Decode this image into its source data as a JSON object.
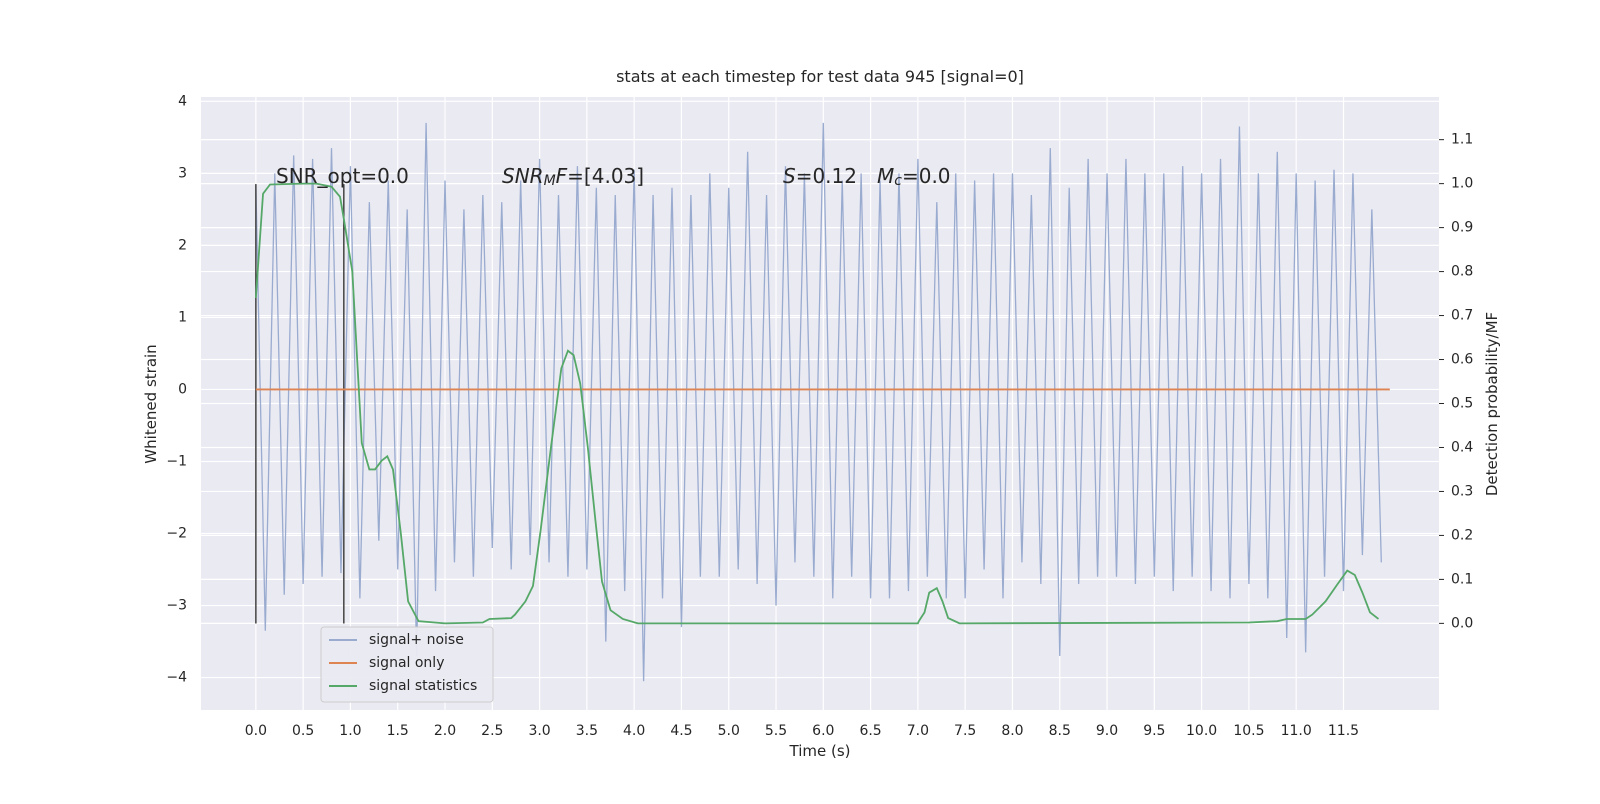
{
  "chart_data": {
    "type": "line",
    "title": "stats at each timestep for test data 945 [signal=0]",
    "x_label": "Time (s)",
    "y_label": "Whitened strain",
    "y2_label": "Detection probability/MF",
    "xlim": [
      -0.58,
      12.51
    ],
    "ylim": [
      -4.45,
      4.06
    ],
    "y2lim": [
      -0.197,
      1.197
    ],
    "xticks": [
      {
        "value": 0,
        "label": "0.0"
      },
      0.5,
      {
        "value": 1,
        "label": "1.0"
      },
      1.5,
      {
        "value": 2,
        "label": "2.0"
      },
      2.5,
      {
        "value": 3,
        "label": "3.0"
      },
      3.5,
      {
        "value": 4,
        "label": "4.0"
      },
      4.5,
      {
        "value": 5,
        "label": "5.0"
      },
      5.5,
      {
        "value": 6,
        "label": "6.0"
      },
      6.5,
      {
        "value": 7,
        "label": "7.0"
      },
      7.5,
      {
        "value": 8,
        "label": "8.0"
      },
      8.5,
      {
        "value": 9,
        "label": "9.0"
      },
      9.5,
      {
        "value": 10,
        "label": "10.0"
      },
      10.5,
      {
        "value": 11,
        "label": "11.0"
      },
      11.5
    ],
    "yticks": [
      {
        "value": -4,
        "label": "−4"
      },
      {
        "value": -3,
        "label": "−3"
      },
      {
        "value": -2,
        "label": "−2"
      },
      {
        "value": -1,
        "label": "−1"
      },
      0,
      1,
      2,
      3,
      4
    ],
    "y2ticks": [
      {
        "value": 0,
        "label": "0.0"
      },
      0.1,
      0.2,
      0.3,
      0.4,
      0.5,
      0.6,
      0.7,
      0.8,
      0.9,
      {
        "value": 1,
        "label": "1.0"
      },
      1.1
    ],
    "grid": true,
    "legend": "lower left",
    "series": [
      {
        "name": "signal+ noise",
        "color": "#9aabd0",
        "x": [
          0.0,
          0.1,
          0.2,
          0.3,
          0.4,
          0.5,
          0.6,
          0.7,
          0.8,
          0.9,
          1.0,
          1.1,
          1.2,
          1.3,
          1.4,
          1.5,
          1.6,
          1.7,
          1.8,
          1.9,
          2.0,
          2.1,
          2.2,
          2.3,
          2.4,
          2.5,
          2.6,
          2.7,
          2.8,
          2.9,
          3.0,
          3.1,
          3.2,
          3.3,
          3.4,
          3.5,
          3.6,
          3.7,
          3.8,
          3.9,
          4.0,
          4.1,
          4.2,
          4.3,
          4.4,
          4.5,
          4.6,
          4.7,
          4.8,
          4.9,
          5.0,
          5.1,
          5.2,
          5.3,
          5.4,
          5.5,
          5.6,
          5.7,
          5.8,
          5.9,
          6.0,
          6.1,
          6.2,
          6.3,
          6.4,
          6.5,
          6.6,
          6.7,
          6.8,
          6.9,
          7.0,
          7.1,
          7.2,
          7.3,
          7.4,
          7.5,
          7.6,
          7.7,
          7.8,
          7.9,
          8.0,
          8.1,
          8.2,
          8.3,
          8.4,
          8.5,
          8.6,
          8.7,
          8.8,
          8.9,
          9.0,
          9.1,
          9.2,
          9.3,
          9.4,
          9.5,
          9.6,
          9.7,
          9.8,
          9.9,
          10.0,
          10.1,
          10.2,
          10.3,
          10.4,
          10.5,
          10.6,
          10.7,
          10.8,
          10.9,
          11.0,
          11.1,
          11.2,
          11.3,
          11.4,
          11.5,
          11.6,
          11.7,
          11.8,
          11.9
        ],
        "values": [
          2.85,
          -3.35,
          3.0,
          -2.85,
          3.25,
          -2.7,
          3.2,
          -2.6,
          3.35,
          -2.55,
          3.1,
          -2.9,
          2.6,
          -2.1,
          2.9,
          -2.5,
          2.5,
          -3.7,
          3.7,
          -2.8,
          2.9,
          -2.4,
          2.5,
          -2.6,
          2.7,
          -2.2,
          2.6,
          -2.5,
          2.9,
          -2.3,
          3.2,
          -2.4,
          2.7,
          -2.6,
          3.1,
          -2.5,
          2.8,
          -3.5,
          2.7,
          -2.8,
          3.05,
          -4.05,
          2.7,
          -2.9,
          2.8,
          -3.3,
          2.7,
          -2.6,
          3.0,
          -2.6,
          2.8,
          -2.5,
          3.3,
          -2.7,
          2.7,
          -3.0,
          3.1,
          -2.4,
          3.0,
          -2.6,
          3.7,
          -2.9,
          2.9,
          -2.6,
          3.0,
          -2.9,
          2.9,
          -2.9,
          3.0,
          -2.8,
          3.2,
          -2.6,
          2.6,
          -2.9,
          3.0,
          -2.9,
          2.9,
          -2.5,
          3.0,
          -2.9,
          3.0,
          -2.4,
          2.7,
          -2.7,
          3.35,
          -3.7,
          2.8,
          -2.7,
          3.2,
          -2.6,
          3.0,
          -2.6,
          3.2,
          -2.7,
          3.0,
          -2.6,
          3.0,
          -2.8,
          3.1,
          -2.6,
          3.0,
          -2.8,
          3.2,
          -2.9,
          3.65,
          -2.7,
          3.0,
          -2.9,
          3.3,
          -3.45,
          3.0,
          -3.65,
          2.9,
          -2.6,
          3.05,
          -2.8,
          3.0,
          -2.3,
          2.5,
          -2.4
        ]
      },
      {
        "name": "signal only",
        "color": "#dd8452",
        "x": [
          0,
          11.99
        ],
        "values": [
          0,
          0
        ]
      },
      {
        "name": "signal statistics",
        "color": "#55a868",
        "axis": "y2",
        "x": [
          0,
          0.076,
          0.15,
          0.5,
          0.64,
          0.8,
          0.89,
          0.93,
          1.02,
          1.12,
          1.2,
          1.26,
          1.33,
          1.39,
          1.45,
          1.53,
          1.61,
          1.72,
          2.0,
          2.4,
          2.47,
          2.7,
          2.74,
          2.85,
          2.93,
          3.01,
          3.12,
          3.23,
          3.3,
          3.36,
          3.43,
          3.51,
          3.59,
          3.66,
          3.75,
          3.88,
          4.04,
          4.5,
          7.0,
          7.01,
          7.07,
          7.12,
          7.2,
          7.26,
          7.32,
          7.44,
          10.5,
          10.8,
          10.9,
          11.1,
          11.17,
          11.31,
          11.44,
          11.54,
          11.62,
          11.7,
          11.78,
          11.87
        ],
        "values": [
          0.74,
          0.977,
          0.998,
          1.0,
          1.0,
          0.993,
          0.97,
          0.92,
          0.8,
          0.41,
          0.35,
          0.35,
          0.37,
          0.38,
          0.35,
          0.21,
          0.05,
          0.005,
          0.0,
          0.002,
          0.01,
          0.012,
          0.02,
          0.05,
          0.085,
          0.21,
          0.4,
          0.58,
          0.62,
          0.61,
          0.545,
          0.4,
          0.235,
          0.095,
          0.03,
          0.01,
          0.0,
          0.0,
          0.0,
          0.005,
          0.025,
          0.07,
          0.08,
          0.05,
          0.012,
          0.0,
          0.002,
          0.005,
          0.01,
          0.01,
          0.02,
          0.05,
          0.09,
          0.12,
          0.11,
          0.07,
          0.025,
          0.01
        ]
      }
    ],
    "vlines": [
      {
        "x": 0,
        "ymin": -3.25,
        "ymax": 2.85,
        "color": "#444444"
      },
      {
        "x": 0.93,
        "ymin": -3.25,
        "ymax": 2.85,
        "color": "#444444"
      }
    ],
    "annotations": [
      {
        "parts": [
          {
            "text": "SNR_opt=0.0"
          }
        ]
      },
      {
        "parts": [
          {
            "text": "SNR",
            "italic": true
          },
          {
            "text": "M",
            "italic": true,
            "sub": true
          },
          {
            "text": "F",
            "italic": true
          },
          {
            "text": "=[4.03]"
          }
        ]
      },
      {
        "parts": [
          {
            "text": "S",
            "italic": true
          },
          {
            "text": "=0.12"
          }
        ]
      },
      {
        "parts": [
          {
            "text": "M",
            "italic": true
          },
          {
            "text": "c",
            "italic": true,
            "sub": true
          },
          {
            "text": "=0.0"
          }
        ]
      }
    ]
  }
}
